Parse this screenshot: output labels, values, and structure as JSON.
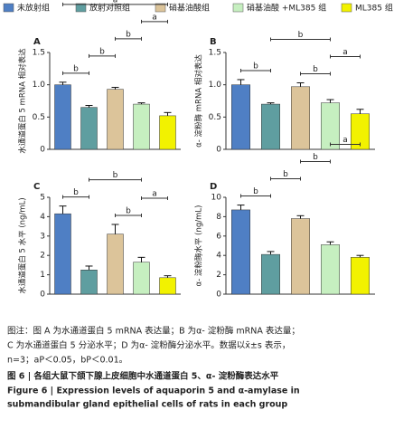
{
  "legend": {
    "items": [
      {
        "name": "未放射组",
        "color": "#4f7fc4"
      },
      {
        "name": "放射对照组",
        "color": "#5f9ea0"
      },
      {
        "name": "硝基油酸组",
        "color": "#dcc49a"
      },
      {
        "name": "硝基油酸 +ML385 组",
        "color": "#c6efc0"
      },
      {
        "name": "ML385 组",
        "color": "#f2f200"
      }
    ]
  },
  "chart_data": [
    {
      "type": "bar",
      "panel": "A",
      "ylabel": "水通道蛋白 5 mRNA 相对表达",
      "ylim": [
        0,
        1.5
      ],
      "yticks": [
        0,
        0.5,
        {
          "value": 1,
          "label": "1.0"
        },
        1.5
      ],
      "values": [
        1.0,
        0.65,
        0.93,
        0.7,
        0.52
      ],
      "errors": [
        0.04,
        0.03,
        0.03,
        0.02,
        0.05
      ],
      "annotations": [
        {
          "label": "b",
          "from": 0,
          "to": 1
        },
        {
          "label": "b",
          "from": 1,
          "to": 2
        },
        {
          "label": "b",
          "from": 2,
          "to": 3
        },
        {
          "label": "a",
          "from": 3,
          "to": 4
        },
        {
          "label": "a",
          "from": 0,
          "to": 4
        }
      ]
    },
    {
      "type": "bar",
      "panel": "B",
      "ylabel": "α- 淀粉酶 mRNA 相对表达",
      "ylim": [
        0,
        1.5
      ],
      "yticks": [
        0,
        0.5,
        {
          "value": 1,
          "label": "1.0"
        },
        1.5
      ],
      "values": [
        1.0,
        0.7,
        0.97,
        0.72,
        0.55
      ],
      "errors": [
        0.08,
        0.02,
        0.06,
        0.05,
        0.07
      ],
      "annotations": [
        {
          "label": "b",
          "from": 0,
          "to": 1
        },
        {
          "label": "b",
          "from": 2,
          "to": 3
        },
        {
          "label": "a",
          "from": 3,
          "to": 4
        },
        {
          "label": "b",
          "from": 1,
          "to": 3
        }
      ]
    },
    {
      "type": "bar",
      "panel": "C",
      "ylabel": "水通道蛋白 5 水平 (ng/mL)",
      "ylim": [
        0,
        5
      ],
      "yticks": [
        0,
        1,
        2,
        3,
        4,
        5
      ],
      "values": [
        4.15,
        1.25,
        3.1,
        1.65,
        0.85
      ],
      "errors": [
        0.4,
        0.2,
        0.5,
        0.25,
        0.1
      ],
      "annotations": [
        {
          "label": "b",
          "from": 0,
          "to": 1
        },
        {
          "label": "b",
          "from": 2,
          "to": 3
        },
        {
          "label": "a",
          "from": 3,
          "to": 4
        },
        {
          "label": "b",
          "from": 1,
          "to": 3
        }
      ]
    },
    {
      "type": "bar",
      "panel": "D",
      "ylabel": "α- 淀粉酶水平 (ng/mL)",
      "ylim": [
        0,
        10
      ],
      "yticks": [
        0,
        2,
        4,
        6,
        8,
        10
      ],
      "values": [
        8.7,
        4.1,
        7.8,
        5.1,
        3.8
      ],
      "errors": [
        0.5,
        0.3,
        0.3,
        0.3,
        0.2
      ],
      "annotations": [
        {
          "label": "b",
          "from": 0,
          "to": 1
        },
        {
          "label": "b",
          "from": 1,
          "to": 2
        },
        {
          "label": "b",
          "from": 2,
          "to": 3
        },
        {
          "label": "a",
          "from": 3,
          "to": 4
        }
      ]
    }
  ],
  "caption": {
    "notes": [
      "图注：图 A 为水通道蛋白 5 mRNA 表达量；B 为α- 淀粉酶 mRNA 表达量；",
      "C 为水通道蛋白 5 分泌水平；D 为α- 淀粉酶分泌水平。数据以x̄±s 表示，",
      "n=3；aP＜0.05，bP＜0.01。"
    ],
    "title_cn": "图 6 | 各组大鼠下颌下腺上皮细胞中水通道蛋白 5、α- 淀粉酶表达水平",
    "title_en": [
      "Figure 6  |  Expression levels of aquaporin 5 and α-amylase in",
      "submandibular gland epithelial cells of rats in each group"
    ]
  }
}
